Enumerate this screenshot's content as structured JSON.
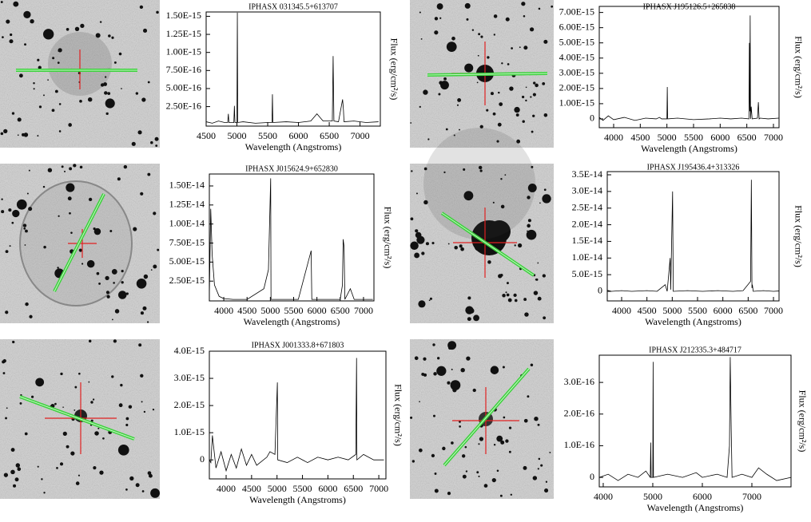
{
  "chart_data": [
    {
      "type": "line",
      "title": "IPHASX 031345.5+613707",
      "xlabel": "Wavelength (Angstroms)",
      "ylabel": "Flux (erg/cm²/s)",
      "color": "#000000",
      "x": [
        4500,
        4600,
        4700,
        4800,
        4850,
        4861,
        4870,
        4950,
        4959,
        4968,
        5000,
        5007,
        5014,
        5100,
        5300,
        5500,
        5570,
        5577,
        5584,
        5800,
        6000,
        6200,
        6300,
        6400,
        6550,
        6563,
        6576,
        6650,
        6717,
        6731,
        6740,
        6900,
        7100,
        7300
      ],
      "values": [
        4e-17,
        2e-17,
        5e-17,
        3e-17,
        3e-17,
        1.5e-16,
        3e-17,
        3e-17,
        2.6e-16,
        3e-17,
        3e-17,
        1.55e-15,
        3e-17,
        4e-17,
        2e-17,
        3e-17,
        3e-17,
        4.2e-16,
        3e-17,
        4e-17,
        3e-17,
        5e-17,
        1.5e-16,
        5e-17,
        5e-17,
        9.5e-16,
        5e-17,
        4e-17,
        3.5e-16,
        2e-16,
        4e-17,
        5e-17,
        3e-17,
        4e-17
      ],
      "xlim": [
        4500,
        7330
      ],
      "ylim": [
        -2e-17,
        1.56e-15
      ],
      "xticks": [
        4500,
        5000,
        5500,
        6000,
        6500,
        7000
      ],
      "yticks": [
        {
          "value": 2.5e-16,
          "label": "2.50E-16"
        },
        {
          "value": 5e-16,
          "label": "5.00E-16"
        },
        {
          "value": 7.5e-16,
          "label": "7.50E-16"
        },
        {
          "value": 1e-15,
          "label": "1.00E-15"
        },
        {
          "value": 1.25e-15,
          "label": "1.25E-15"
        },
        {
          "value": 1.5e-15,
          "label": "1.50E-15"
        }
      ]
    },
    {
      "type": "line",
      "title": "IPHASX J195126.5+265838",
      "xlabel": "Wavelength (Angstroms)",
      "ylabel": "Flux (erg/cm²/s)",
      "color": "#000000",
      "x": [
        3730,
        3800,
        3900,
        4000,
        4200,
        4400,
        4600,
        4800,
        4861,
        4900,
        5000,
        5007,
        5014,
        5200,
        5500,
        5800,
        6000,
        6200,
        6400,
        6540,
        6548,
        6556,
        6563,
        6570,
        6583,
        6600,
        6700,
        6717,
        6731,
        6750,
        6900,
        7100
      ],
      "values": [
        1e-16,
        -1e-16,
        2e-16,
        -5e-17,
        1e-16,
        -1e-16,
        5e-17,
        0,
        1e-16,
        0,
        0,
        2.1e-15,
        0,
        5e-17,
        -5e-17,
        0,
        5e-17,
        0,
        5e-17,
        0,
        5e-15,
        5e-16,
        6.8e-15,
        0,
        8e-16,
        0,
        5e-17,
        1.1e-15,
        0,
        5e-17,
        0,
        5e-17
      ],
      "xlim": [
        3730,
        7105
      ],
      "ylim": [
        -5.8e-16,
        7.4e-15
      ],
      "xticks": [
        4000,
        4500,
        5000,
        5500,
        6000,
        6500,
        7000
      ],
      "yticks": [
        0,
        {
          "value": 1e-15,
          "label": "1.00E-15"
        },
        {
          "value": 2e-15,
          "label": "2.00E-15"
        },
        {
          "value": 3e-15,
          "label": "3.00E-15"
        },
        {
          "value": 4e-15,
          "label": "4.00E-15"
        },
        {
          "value": 5e-15,
          "label": "5.00E-15"
        },
        {
          "value": 6e-15,
          "label": "6.00E-15"
        },
        {
          "value": 7e-15,
          "label": "7.00E-15"
        }
      ]
    },
    {
      "type": "line",
      "title": "IPHASX J015624.9+652830",
      "xlabel": "Wavelength (Angstroms)",
      "ylabel": "Flux (erg/cm²/s)",
      "color": "#000000",
      "x": [
        3690,
        3720,
        3750,
        3800,
        3900,
        4000,
        4200,
        4500,
        4861,
        4959,
        5007,
        5014,
        5300,
        5600,
        5876,
        5890,
        6200,
        6500,
        6548,
        6563,
        6583,
        6600,
        6717,
        6800,
        7000,
        7200
      ],
      "values": [
        5e-16,
        1.2e-14,
        6e-15,
        2e-15,
        5e-16,
        2e-16,
        1e-16,
        1e-16,
        1.5e-15,
        4e-15,
        1.6e-14,
        1e-16,
        1e-16,
        1e-16,
        6.5e-15,
        1e-16,
        1e-16,
        1e-16,
        2e-15,
        8e-15,
        7e-15,
        1e-16,
        1.5e-15,
        1e-16,
        1e-16,
        1e-16
      ],
      "xlim": [
        3690,
        7224
      ],
      "ylim": [
        -1e-16,
        1.657e-14
      ],
      "xticks": [
        4000,
        4500,
        5000,
        5500,
        6000,
        6500,
        7000
      ],
      "yticks": [
        {
          "value": 2.5e-15,
          "label": "2.50E-15"
        },
        {
          "value": 5e-15,
          "label": "5.00E-15"
        },
        {
          "value": 7.5e-15,
          "label": "7.50E-15"
        },
        {
          "value": 1e-14,
          "label": "1.00E-14"
        },
        {
          "value": 1.25e-14,
          "label": "1.25E-14"
        },
        {
          "value": 1.5e-14,
          "label": "1.50E-14"
        }
      ]
    },
    {
      "type": "line",
      "title": "IPHASX J195436.4+313326",
      "xlabel": "Wavelength (Angstroms)",
      "ylabel": "Flux (erg/cm²/s)",
      "color": "#000000",
      "x": [
        3716,
        3800,
        4000,
        4200,
        4500,
        4700,
        4861,
        4900,
        4959,
        4970,
        5007,
        5020,
        5300,
        5600,
        5900,
        6200,
        6400,
        6548,
        6563,
        6575,
        6583,
        6600,
        6800,
        7000,
        7110
      ],
      "values": [
        3e-16,
        0,
        2e-16,
        0,
        2e-16,
        0,
        2e-15,
        0,
        1e-14,
        5e-16,
        3e-14,
        0,
        2e-16,
        0,
        2e-16,
        0,
        2e-16,
        3e-15,
        3.35e-14,
        1e-15,
        2e-15,
        0,
        2e-16,
        0,
        1e-16
      ],
      "xlim": [
        3716,
        7110
      ],
      "ylim": [
        -2.88e-15,
        3.596e-14
      ],
      "xticks": [
        4000,
        4500,
        5000,
        5500,
        6000,
        6500,
        7000
      ],
      "yticks": [
        0,
        {
          "value": 5e-15,
          "label": "5.0E-15"
        },
        {
          "value": 1e-14,
          "label": "1.0E-14"
        },
        {
          "value": 1.5e-14,
          "label": "1.5E-14"
        },
        {
          "value": 2e-14,
          "label": "2.0E-14"
        },
        {
          "value": 2.5e-14,
          "label": "2.5E-14"
        },
        {
          "value": 3e-14,
          "label": "3.0E-14"
        },
        {
          "value": 3.5e-14,
          "label": "3.5E-14"
        }
      ]
    },
    {
      "type": "line",
      "title": "IPHASX J001333.8+671803",
      "xlabel": "Wavelength (Angstroms)",
      "ylabel": "Flux (erg/cm²/s)",
      "color": "#000000",
      "x": [
        3670,
        3700,
        3730,
        3800,
        3900,
        4000,
        4100,
        4200,
        4300,
        4400,
        4500,
        4600,
        4800,
        4861,
        4959,
        5007,
        5014,
        5200,
        5400,
        5600,
        5800,
        6000,
        6200,
        6400,
        6548,
        6563,
        6570,
        6700,
        6900,
        7100
      ],
      "values": [
        0,
        -1e-16,
        9e-16,
        -3e-16,
        3e-16,
        -4e-16,
        2e-16,
        -3e-16,
        4e-16,
        -2e-16,
        2e-16,
        -2e-16,
        1e-16,
        3e-16,
        2e-16,
        2.85e-15,
        0,
        -1e-16,
        1e-16,
        -1e-16,
        1e-16,
        0,
        1e-16,
        0,
        2e-16,
        3.75e-15,
        0,
        2e-16,
        0,
        0
      ],
      "xlim": [
        3670,
        7140
      ],
      "ylim": [
        -7e-16,
        4e-15
      ],
      "xticks": [
        4000,
        4500,
        5000,
        5500,
        6000,
        6500,
        7000
      ],
      "yticks": [
        0,
        {
          "value": 1e-15,
          "label": "1.0E-15"
        },
        {
          "value": 2e-15,
          "label": "2.0E-15"
        },
        {
          "value": 3e-15,
          "label": "3.0E-15"
        },
        {
          "value": 4e-15,
          "label": "4.0E-15"
        }
      ]
    },
    {
      "type": "line",
      "title": "IPHASX J212335.3+484717",
      "xlabel": "Wavelength (Angstroms)",
      "ylabel": "Flux (erg/cm²/s)",
      "color": "#000000",
      "x": [
        3920,
        4100,
        4300,
        4500,
        4700,
        4861,
        4950,
        4959,
        4968,
        5000,
        5007,
        5014,
        5300,
        5600,
        5876,
        6000,
        6300,
        6500,
        6548,
        6563,
        6583,
        6600,
        6800,
        7000,
        7135,
        7300,
        7500,
        7790
      ],
      "values": [
        0,
        1e-17,
        -1e-17,
        1e-17,
        0,
        2e-17,
        0,
        1.1e-16,
        0,
        0,
        3.65e-16,
        0,
        1e-17,
        0,
        1.5e-17,
        0,
        1e-17,
        0,
        1e-16,
        3.8e-16,
        1.5e-16,
        0,
        1e-17,
        0,
        3e-17,
        1e-17,
        -1e-17,
        0
      ],
      "xlim": [
        3920,
        7790
      ],
      "ylim": [
        -3e-17,
        3.86e-16
      ],
      "xticks": [
        4000,
        5000,
        6000,
        7000
      ],
      "yticks": [
        0,
        {
          "value": 1e-16,
          "label": "1.0E-16"
        },
        {
          "value": 2e-16,
          "label": "2.0E-16"
        },
        {
          "value": 3e-16,
          "label": "3.0E-16"
        }
      ]
    }
  ]
}
